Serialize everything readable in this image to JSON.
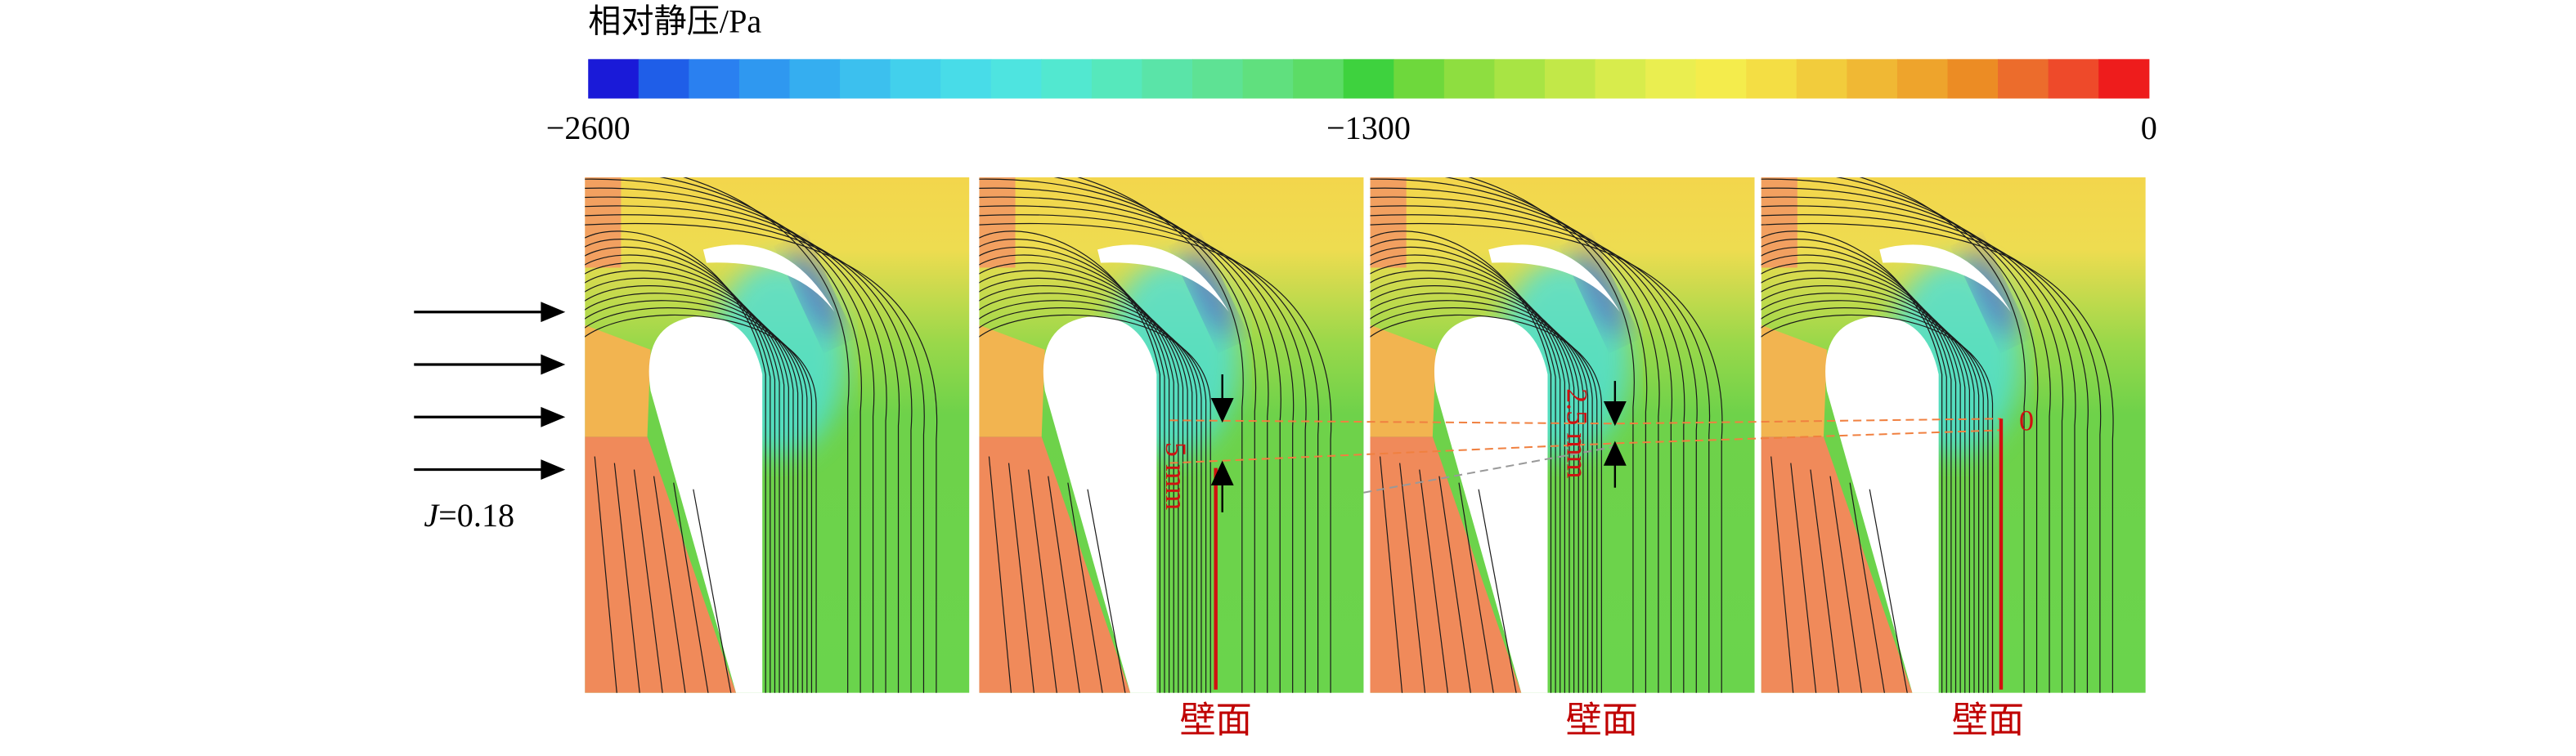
{
  "chart_data": {
    "type": "colorbar",
    "title": "相对静压/Pa",
    "colors": [
      "#1a1ad8",
      "#1f5ee8",
      "#2a80f0",
      "#2f98f0",
      "#35aef0",
      "#3cc0ee",
      "#42d0ec",
      "#48dce8",
      "#4ee4e0",
      "#52e8d0",
      "#56e8bc",
      "#5ae4a8",
      "#5ee294",
      "#60e07e",
      "#5cdc66",
      "#3ed23e",
      "#6ed83c",
      "#8ede40",
      "#a8e444",
      "#c2e848",
      "#d8ec4c",
      "#eaee50",
      "#f4ec4c",
      "#f4de44",
      "#f2cc3c",
      "#f0b834",
      "#eea42c",
      "#ec8c24",
      "#ec6c2c",
      "#ee4a2a",
      "#ee1c1c"
    ],
    "xlim": [
      -2600,
      0
    ],
    "xticks": [
      {
        "value": -2600,
        "label": "−2600"
      },
      {
        "value": -1300,
        "label": "−1300"
      },
      0
    ]
  },
  "annotations": {
    "jet": {
      "symbol": "J",
      "text": "=0.18"
    },
    "gaps": [
      "5 mm",
      "2.5 mm",
      "0"
    ],
    "wall_labels": [
      "壁面",
      "壁面",
      "壁面"
    ]
  }
}
